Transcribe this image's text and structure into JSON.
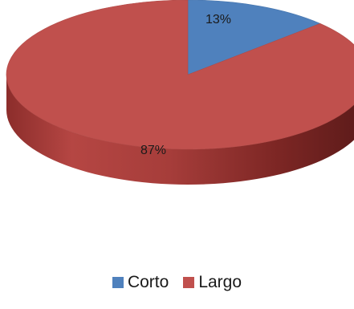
{
  "chart_data": {
    "type": "pie",
    "title": "",
    "categories": [
      "Corto",
      "Largo"
    ],
    "values": [
      13,
      87
    ],
    "data_labels": [
      "13%",
      "87%"
    ],
    "colors": [
      "#4f81bd",
      "#c0504d"
    ],
    "legend": {
      "placement": "bottom",
      "entries": [
        "Corto",
        "Largo"
      ]
    },
    "style": "3d-tilted"
  }
}
